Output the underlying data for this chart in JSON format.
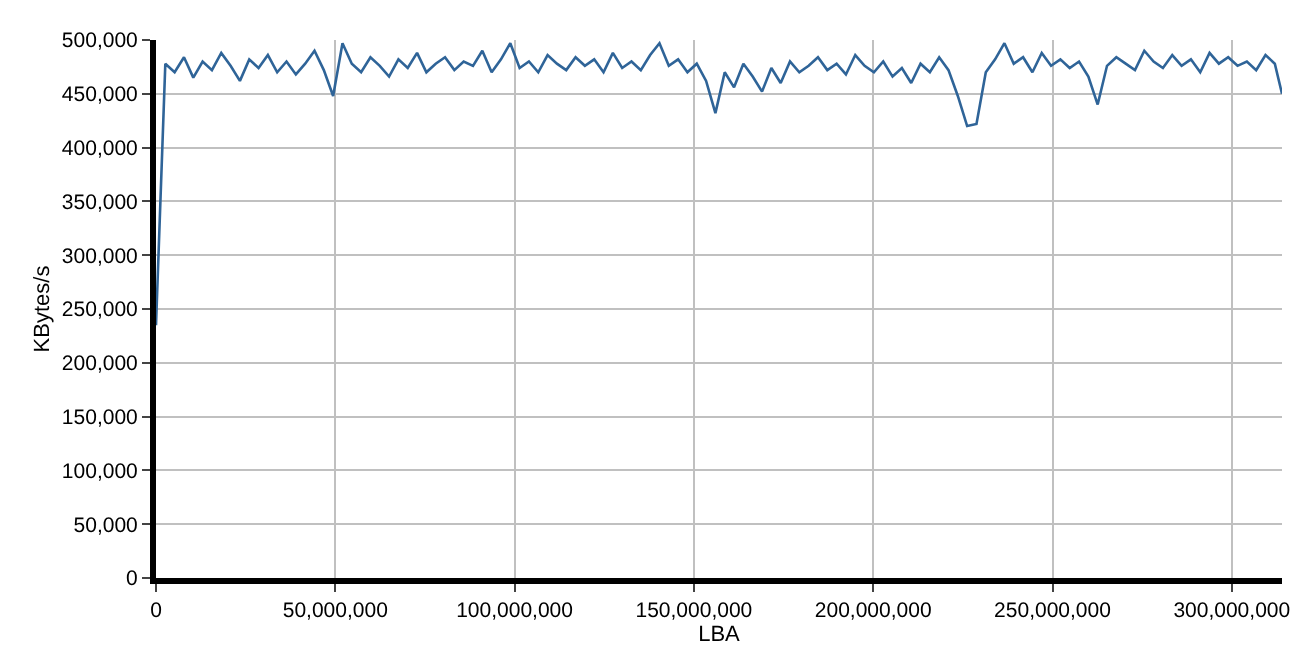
{
  "chart_data": {
    "type": "line",
    "xlabel": "LBA",
    "ylabel": "KBytes/s",
    "x": [
      0,
      2600000,
      5200000,
      7800000,
      10400000,
      13000000,
      15600000,
      18200000,
      20800000,
      23400000,
      26000000,
      28600000,
      31200000,
      33800000,
      36400000,
      39000000,
      41600000,
      44200000,
      46800000,
      49400000,
      52000000,
      54600000,
      57200000,
      59800000,
      62400000,
      65000000,
      67600000,
      70200000,
      72800000,
      75400000,
      78000000,
      80600000,
      83200000,
      85800000,
      88400000,
      91000000,
      93600000,
      96200000,
      98800000,
      101400000,
      104000000,
      106600000,
      109200000,
      111800000,
      114400000,
      117000000,
      119600000,
      122200000,
      124800000,
      127400000,
      130000000,
      132600000,
      135200000,
      137800000,
      140400000,
      143000000,
      145600000,
      148200000,
      150800000,
      153400000,
      156000000,
      158600000,
      161200000,
      163800000,
      166400000,
      169000000,
      171600000,
      174200000,
      176800000,
      179400000,
      182000000,
      184600000,
      187200000,
      189800000,
      192400000,
      195000000,
      197600000,
      200200000,
      202800000,
      205400000,
      208000000,
      210600000,
      213200000,
      215800000,
      218400000,
      221000000,
      223600000,
      226200000,
      228800000,
      231400000,
      234000000,
      236600000,
      239200000,
      241800000,
      244400000,
      247000000,
      249600000,
      252200000,
      254800000,
      257400000,
      260000000,
      262600000,
      265200000,
      267800000,
      270400000,
      273000000,
      275600000,
      278200000,
      280800000,
      283400000,
      286000000,
      288600000,
      291200000,
      293800000,
      296400000,
      299000000,
      301600000,
      304200000,
      306800000,
      309400000,
      312000000,
      314000000
    ],
    "series": [
      {
        "color": "#2f6498",
        "values": [
          235000,
          478000,
          470000,
          484000,
          465000,
          480000,
          472000,
          488000,
          476000,
          462000,
          482000,
          474000,
          486000,
          470000,
          480000,
          468000,
          478000,
          490000,
          472000,
          448000,
          497000,
          478000,
          470000,
          484000,
          476000,
          466000,
          482000,
          474000,
          488000,
          470000,
          478000,
          484000,
          472000,
          480000,
          476000,
          490000,
          470000,
          482000,
          497000,
          474000,
          480000,
          470000,
          486000,
          478000,
          472000,
          484000,
          476000,
          482000,
          470000,
          488000,
          474000,
          480000,
          472000,
          486000,
          497000,
          476000,
          482000,
          470000,
          478000,
          462000,
          432000,
          470000,
          456000,
          478000,
          466000,
          452000,
          474000,
          460000,
          480000,
          470000,
          476000,
          484000,
          472000,
          478000,
          468000,
          486000,
          476000,
          470000,
          480000,
          466000,
          474000,
          460000,
          478000,
          470000,
          484000,
          472000,
          448000,
          420000,
          422000,
          470000,
          482000,
          497000,
          478000,
          484000,
          470000,
          488000,
          476000,
          482000,
          474000,
          480000,
          466000,
          440000,
          476000,
          484000,
          478000,
          472000,
          490000,
          480000,
          474000,
          486000,
          476000,
          482000,
          470000,
          488000,
          478000,
          484000,
          476000,
          480000,
          472000,
          486000,
          478000,
          450000
        ]
      }
    ],
    "xlim": [
      0,
      314000000
    ],
    "xticks": [
      0,
      {
        "value": 50000000,
        "label": "50,000,000"
      },
      {
        "value": 100000000,
        "label": "100,000,000"
      },
      {
        "value": 150000000,
        "label": "150,000,000"
      },
      {
        "value": 200000000,
        "label": "200,000,000"
      },
      {
        "value": 250000000,
        "label": "250,000,000"
      },
      {
        "value": 300000000,
        "label": "300,000,000"
      }
    ],
    "ylim": [
      0,
      500000
    ],
    "yticks": [
      0,
      {
        "value": 50000,
        "label": "50,000"
      },
      {
        "value": 100000,
        "label": "100,000"
      },
      {
        "value": 150000,
        "label": "150,000"
      },
      {
        "value": 200000,
        "label": "200,000"
      },
      {
        "value": 250000,
        "label": "250,000"
      },
      {
        "value": 300000,
        "label": "300,000"
      },
      {
        "value": 350000,
        "label": "350,000"
      },
      {
        "value": 400000,
        "label": "400,000"
      },
      {
        "value": 450000,
        "label": "450,000"
      },
      {
        "value": 500000,
        "label": "500,000"
      }
    ],
    "grid": true,
    "marker": "none",
    "line_style": "solid"
  }
}
